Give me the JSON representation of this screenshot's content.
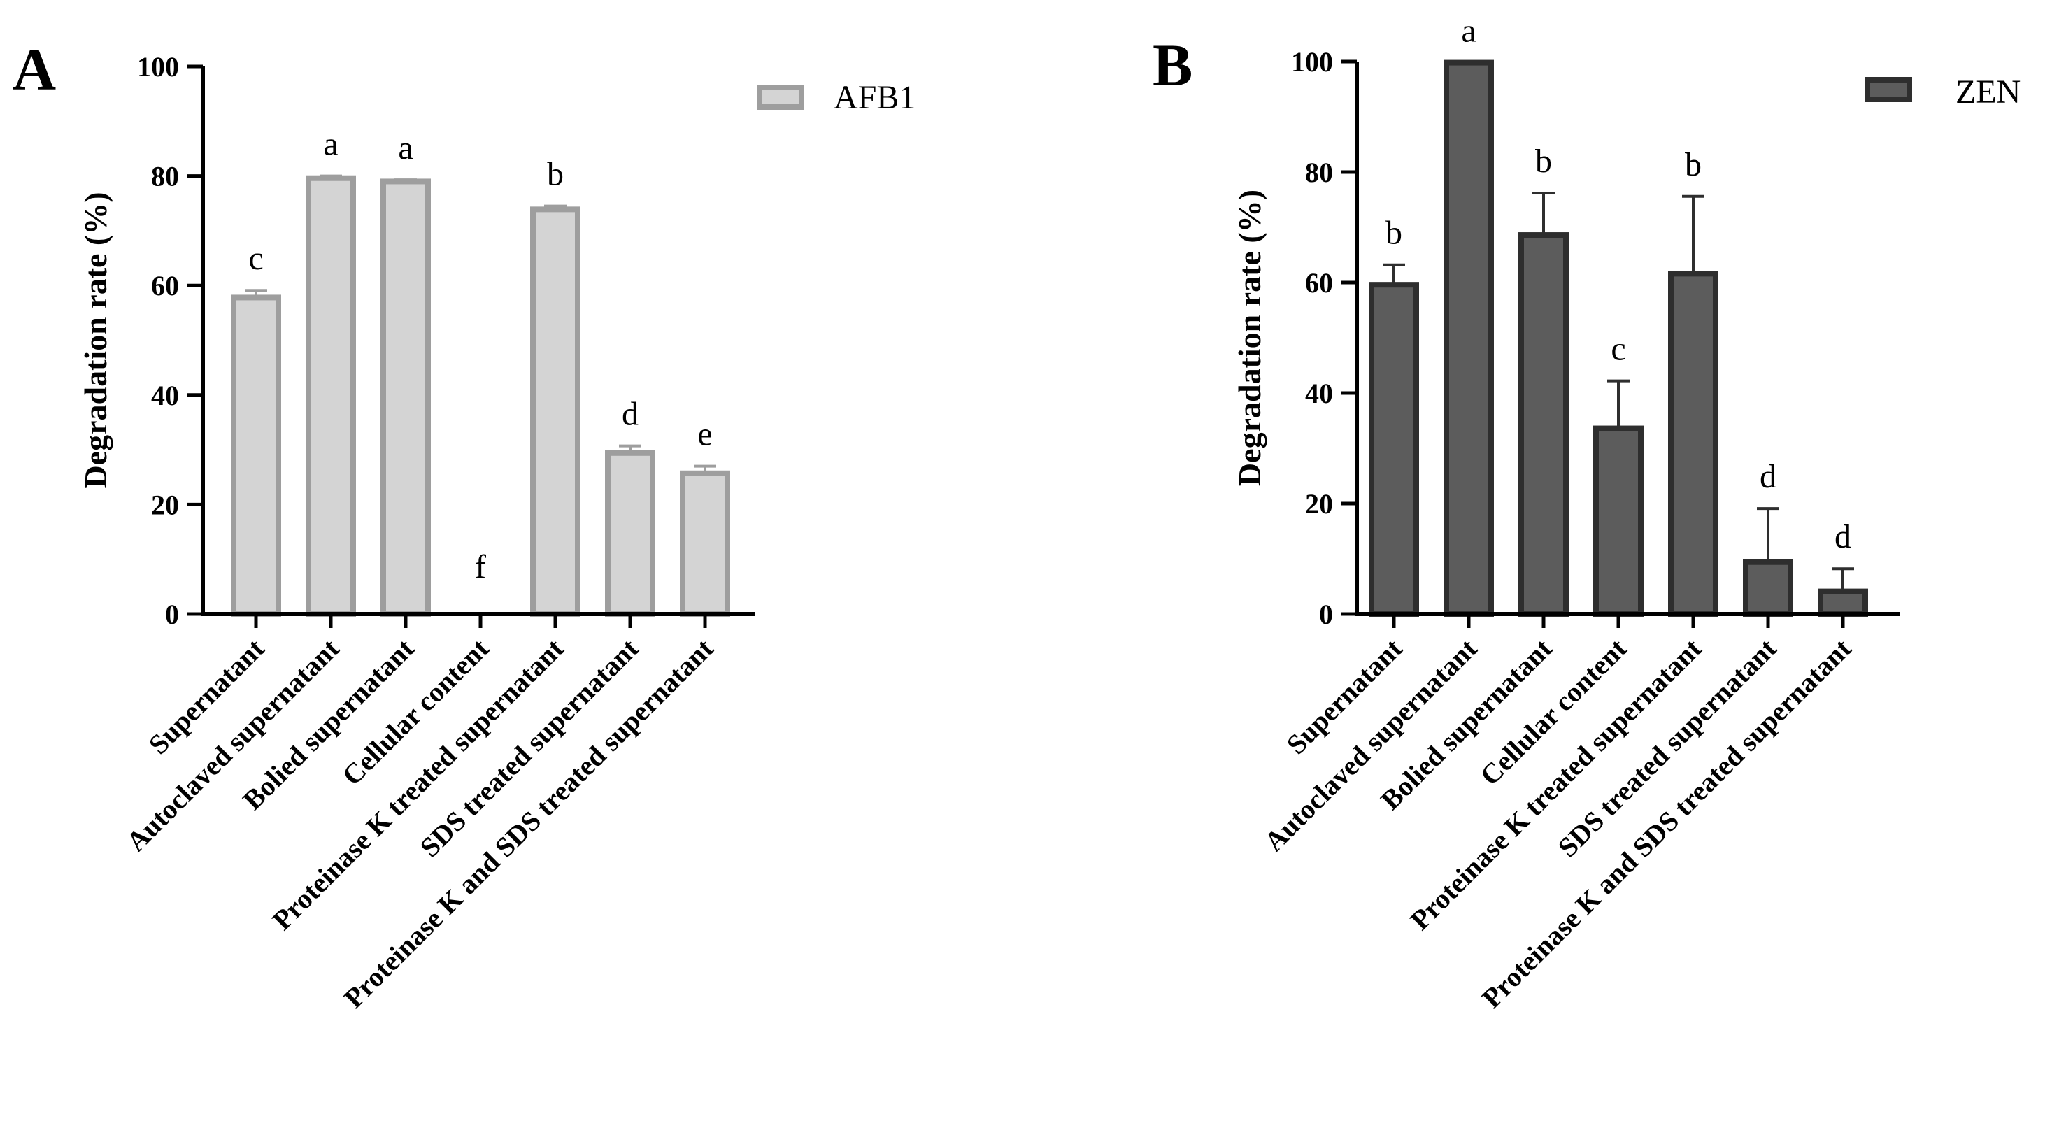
{
  "chart_data": [
    {
      "type": "bar",
      "panel": "A",
      "ylabel": "Degradation rate (%)",
      "xlabel": "",
      "ylim": [
        0,
        100
      ],
      "yticks": [
        0,
        20,
        40,
        60,
        80,
        100
      ],
      "categories": [
        "Supernatant",
        "Autoclaved supernatant",
        "Bolied supernatant",
        "Cellular content",
        "Proteinase K treated supernatant",
        "SDS treated supernatant",
        "Proteinase K and SDS treated supernatant"
      ],
      "series": [
        {
          "name": "AFB1",
          "values": [
            57.8,
            79.6,
            79.0,
            0,
            73.9,
            29.4,
            25.7
          ],
          "errors": [
            1.3,
            0.4,
            0.3,
            0,
            0.6,
            1.3,
            1.3
          ],
          "significance": [
            "c",
            "a",
            "a",
            "f",
            "b",
            "d",
            "e"
          ],
          "fill": "#d4d4d4",
          "stroke": "#9e9e9e"
        }
      ]
    },
    {
      "type": "bar",
      "panel": "B",
      "ylabel": "Degradation rate (%)",
      "xlabel": "",
      "ylim": [
        0,
        100
      ],
      "yticks": [
        0,
        20,
        40,
        60,
        80,
        100
      ],
      "categories": [
        "Supernatant",
        "Autoclaved supernatant",
        "Bolied supernatant",
        "Cellular content",
        "Proteinase K treated supernatant",
        "SDS treated supernatant",
        "Proteinase K and SDS treated supernatant"
      ],
      "series": [
        {
          "name": "ZEN",
          "values": [
            59.6,
            99.8,
            68.6,
            33.6,
            61.6,
            9.4,
            4.1
          ],
          "errors": [
            3.6,
            0,
            7.6,
            8.6,
            14.0,
            9.7,
            4.1
          ],
          "significance": [
            "b",
            "a",
            "b",
            "c",
            "b",
            "d",
            "d"
          ],
          "fill": "#5c5c5c",
          "stroke": "#2e2e2e"
        }
      ]
    }
  ]
}
